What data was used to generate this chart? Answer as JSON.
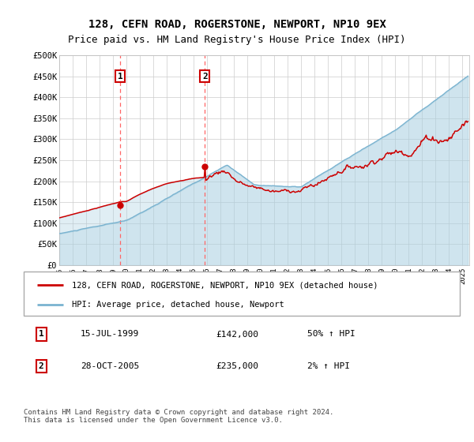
{
  "title": "128, CEFN ROAD, ROGERSTONE, NEWPORT, NP10 9EX",
  "subtitle": "Price paid vs. HM Land Registry's House Price Index (HPI)",
  "legend_line1": "128, CEFN ROAD, ROGERSTONE, NEWPORT, NP10 9EX (detached house)",
  "legend_line2": "HPI: Average price, detached house, Newport",
  "footnote": "Contains HM Land Registry data © Crown copyright and database right 2024.\nThis data is licensed under the Open Government Licence v3.0.",
  "transaction1_date": "15-JUL-1999",
  "transaction1_price": "£142,000",
  "transaction1_hpi": "50% ↑ HPI",
  "transaction2_date": "28-OCT-2005",
  "transaction2_price": "£235,000",
  "transaction2_hpi": "2% ↑ HPI",
  "transaction1_year": 1999.54,
  "transaction2_year": 2005.83,
  "transaction1_price_val": 142000,
  "transaction2_price_val": 235000,
  "hpi_color": "#a8cfe0",
  "hpi_line_color": "#7ab3d0",
  "price_color": "#cc0000",
  "vline_color": "#ff6666",
  "ylim": [
    0,
    500000
  ],
  "xlim_start": 1995,
  "xlim_end": 2025.5,
  "yticks": [
    0,
    50000,
    100000,
    150000,
    200000,
    250000,
    300000,
    350000,
    400000,
    450000,
    500000
  ],
  "background_color": "#ffffff",
  "grid_color": "#cccccc",
  "title_fontsize": 10,
  "subtitle_fontsize": 9
}
